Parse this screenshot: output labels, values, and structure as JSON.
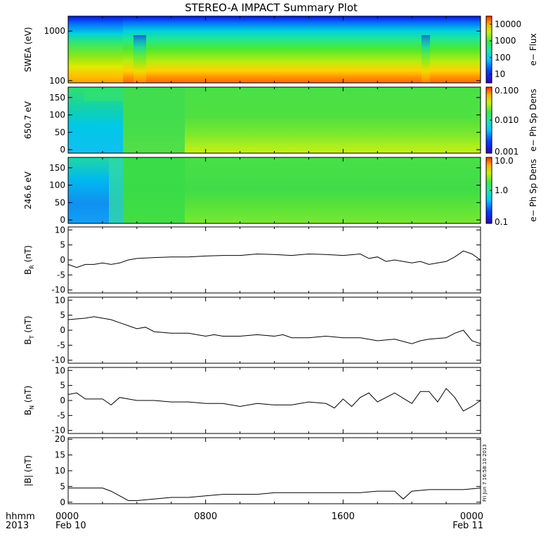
{
  "title": "STEREO-A IMPACT Summary Plot",
  "chart_data": [
    {
      "type": "heatmap",
      "ylabel": "SWEA (eV)",
      "y_scale": "log",
      "y_ticks": [
        100,
        1000
      ],
      "ylim": [
        90,
        2000
      ],
      "colorbar": {
        "label": "e− Flux",
        "scale": "log",
        "ticks": [
          10,
          100,
          1000,
          10000
        ],
        "range": [
          3,
          30000
        ]
      }
    },
    {
      "type": "heatmap",
      "ylabel": "650.7 eV",
      "y_ticks": [
        0,
        50,
        100,
        150
      ],
      "ylim": [
        -10,
        180
      ],
      "colorbar": {
        "label": "e− Ph Sp Dens",
        "scale": "log",
        "ticks": [
          "0.001",
          "0.010",
          "0.100"
        ],
        "range": [
          0.001,
          0.1
        ]
      }
    },
    {
      "type": "heatmap",
      "ylabel": "246.6 eV",
      "y_ticks": [
        0,
        50,
        100,
        150
      ],
      "ylim": [
        -10,
        180
      ],
      "colorbar": {
        "label": "e− Ph Sp Dens",
        "scale": "log",
        "ticks": [
          "0.1",
          "1.0",
          "10.0"
        ],
        "range": [
          0.1,
          10
        ]
      }
    },
    {
      "type": "line",
      "ylabel_main": "B",
      "ylabel_sub": "R",
      "ylabel_unit": "(nT)",
      "ylim": [
        -11,
        11
      ],
      "y_ticks": [
        -10,
        -5,
        0,
        5,
        10
      ],
      "x": [
        0,
        0.5,
        1,
        1.5,
        2,
        2.5,
        3,
        3.5,
        4,
        5,
        6,
        7,
        8,
        9,
        10,
        11,
        12,
        13,
        14,
        15,
        16,
        17,
        17.5,
        18,
        18.5,
        19,
        20,
        20.5,
        21,
        22,
        22.5,
        23,
        23.5,
        24
      ],
      "y": [
        -1.5,
        -2.5,
        -1.5,
        -1.5,
        -1.0,
        -1.5,
        -1.0,
        0.0,
        0.5,
        0.8,
        1.0,
        1.0,
        1.3,
        1.5,
        1.5,
        2.0,
        1.8,
        1.5,
        2.0,
        1.8,
        1.5,
        2.0,
        0.5,
        1.0,
        -0.5,
        0.0,
        -1.0,
        -0.5,
        -1.5,
        -0.5,
        1.0,
        3.0,
        2.0,
        0.0
      ]
    },
    {
      "type": "line",
      "ylabel_main": "B",
      "ylabel_sub": "T",
      "ylabel_unit": "(nT)",
      "ylim": [
        -11,
        11
      ],
      "y_ticks": [
        -10,
        -5,
        0,
        5,
        10
      ],
      "x": [
        0,
        1,
        1.5,
        2,
        2.5,
        3,
        3.5,
        4,
        4.5,
        5,
        6,
        7,
        8,
        8.5,
        9,
        10,
        11,
        12,
        12.5,
        13,
        14,
        15,
        16,
        17,
        18,
        19,
        20,
        20.5,
        21,
        22,
        22.5,
        23,
        23.5,
        24
      ],
      "y": [
        3.5,
        4.0,
        4.5,
        4.0,
        3.5,
        2.5,
        1.5,
        0.5,
        1.0,
        -0.5,
        -1.0,
        -1.0,
        -2.0,
        -1.5,
        -2.0,
        -2.0,
        -1.5,
        -2.0,
        -1.5,
        -2.5,
        -2.5,
        -2.0,
        -2.5,
        -2.5,
        -3.5,
        -3.0,
        -4.5,
        -3.5,
        -3.0,
        -2.5,
        -1.0,
        0.0,
        -3.5,
        -4.5
      ]
    },
    {
      "type": "line",
      "ylabel_main": "B",
      "ylabel_sub": "N",
      "ylabel_unit": "(nT)",
      "ylim": [
        -11,
        11
      ],
      "y_ticks": [
        -10,
        -5,
        0,
        5,
        10
      ],
      "x": [
        0,
        0.5,
        1,
        2,
        2.5,
        3,
        3.5,
        4,
        5,
        6,
        7,
        8,
        9,
        10,
        11,
        12,
        13,
        14,
        15,
        15.5,
        16,
        16.5,
        17,
        17.5,
        18,
        19,
        20,
        20.5,
        21,
        21.5,
        22,
        22.5,
        23,
        23.5,
        24
      ],
      "y": [
        2.0,
        2.5,
        0.5,
        0.5,
        -1.5,
        1.0,
        0.5,
        0.0,
        0.0,
        -0.5,
        -0.5,
        -1.0,
        -1.0,
        -2.0,
        -1.0,
        -1.5,
        -1.5,
        -0.5,
        -1.0,
        -2.5,
        0.5,
        -2.0,
        1.0,
        2.5,
        -0.5,
        2.5,
        -1.0,
        3.0,
        3.0,
        -0.5,
        4.0,
        1.0,
        -3.5,
        -2.0,
        0.0
      ]
    },
    {
      "type": "line",
      "ylabel_main": "|B|",
      "ylabel_sub": "",
      "ylabel_unit": "(nT)",
      "ylim": [
        -0.5,
        20.5
      ],
      "y_ticks": [
        0,
        5,
        10,
        15,
        20
      ],
      "x": [
        0,
        1,
        2,
        2.5,
        3,
        3.5,
        4,
        5,
        6,
        7,
        8,
        9,
        10,
        11,
        12,
        13,
        14,
        15,
        16,
        17,
        18,
        19,
        19.5,
        20,
        21,
        22,
        23,
        24
      ],
      "y": [
        4.5,
        4.5,
        4.5,
        3.5,
        2.0,
        0.5,
        0.5,
        1.0,
        1.5,
        1.5,
        2.0,
        2.5,
        2.5,
        2.5,
        3.0,
        3.0,
        3.0,
        3.0,
        3.0,
        3.0,
        3.5,
        3.5,
        1.0,
        3.5,
        4.0,
        4.0,
        4.0,
        4.5
      ]
    }
  ],
  "x_axis": {
    "row1_label": "hhmm",
    "row2_label": "2013",
    "ticks": [
      {
        "hour": 0,
        "label": "0000",
        "date": "Feb 10"
      },
      {
        "hour": 8,
        "label": "0800",
        "date": ""
      },
      {
        "hour": 16,
        "label": "1600",
        "date": ""
      },
      {
        "hour": 24,
        "label": "0000",
        "date": "Feb 11"
      }
    ],
    "range_hours": [
      0,
      24
    ]
  },
  "timestamp": "Fri Jun  7 16:58:10 2013"
}
